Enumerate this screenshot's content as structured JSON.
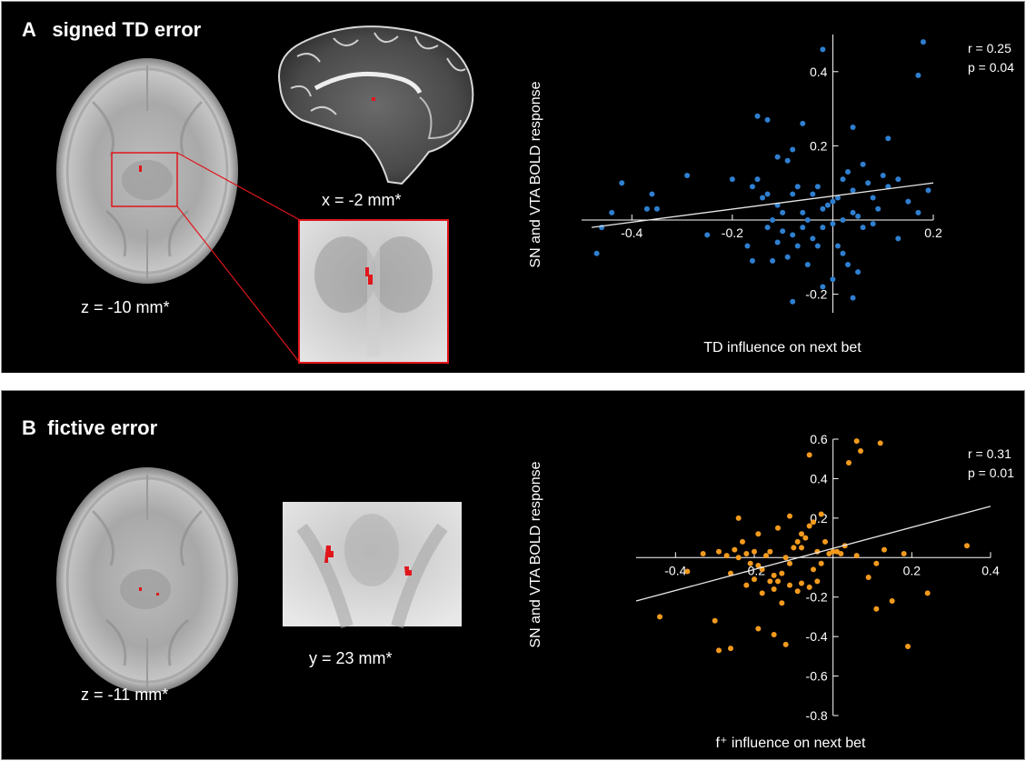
{
  "panels": {
    "a": {
      "letter": "A",
      "title": "signed TD error",
      "axial_caption": "z = -10 mm*",
      "sagittal_caption": "x = -2 mm*"
    },
    "b": {
      "letter": "B",
      "title": "fictive error",
      "axial_caption": "z = -11 mm*",
      "coronal_caption": "y = 23 mm*"
    }
  },
  "colors": {
    "blue": "#2f7fd0",
    "orange": "#f39a1e",
    "activation": "#e0161b",
    "panel_bg": "#000000",
    "text": "#ffffff"
  },
  "chart_data": [
    {
      "type": "scatter",
      "ylabel": "SN and VTA BOLD response",
      "xlabel": "TD influence on next bet",
      "stats": [
        "r = 0.25",
        "p = 0.04"
      ],
      "xlim": [
        -0.5,
        0.2
      ],
      "ylim": [
        -0.25,
        0.5
      ],
      "xticks": [
        -0.4,
        -0.2,
        0.2
      ],
      "yticks": [
        -0.2,
        0.2,
        0.4
      ],
      "color": "#2f7fd0",
      "fit_line": [
        [
          -0.48,
          -0.02
        ],
        [
          0.2,
          0.1
        ]
      ],
      "points": [
        [
          -0.36,
          0.07
        ],
        [
          -0.35,
          0.03
        ],
        [
          -0.29,
          0.12
        ],
        [
          -0.2,
          0.11
        ],
        [
          -0.42,
          0.1
        ],
        [
          -0.44,
          0.02
        ],
        [
          -0.46,
          -0.02
        ],
        [
          -0.47,
          -0.09
        ],
        [
          -0.25,
          -0.04
        ],
        [
          -0.37,
          0.03
        ],
        [
          -0.13,
          0.07
        ],
        [
          -0.11,
          0.04
        ],
        [
          -0.1,
          0.02
        ],
        [
          -0.09,
          0.16
        ],
        [
          -0.08,
          0.07
        ],
        [
          -0.07,
          0.09
        ],
        [
          -0.06,
          0.02
        ],
        [
          -0.05,
          0.0
        ],
        [
          -0.04,
          0.07
        ],
        [
          -0.03,
          0.09
        ],
        [
          -0.02,
          0.03
        ],
        [
          -0.01,
          0.04
        ],
        [
          0.0,
          0.05
        ],
        [
          0.01,
          0.06
        ],
        [
          0.02,
          0.11
        ],
        [
          0.03,
          0.13
        ],
        [
          0.04,
          0.08
        ],
        [
          0.05,
          0.01
        ],
        [
          0.06,
          0.15
        ],
        [
          0.07,
          0.1
        ],
        [
          0.08,
          0.06
        ],
        [
          0.09,
          0.03
        ],
        [
          0.1,
          0.12
        ],
        [
          0.11,
          0.09
        ],
        [
          0.13,
          0.11
        ],
        [
          0.15,
          0.05
        ],
        [
          0.17,
          0.02
        ],
        [
          0.19,
          0.08
        ],
        [
          -0.16,
          0.09
        ],
        [
          -0.15,
          0.11
        ],
        [
          -0.14,
          0.06
        ],
        [
          -0.12,
          0.0
        ],
        [
          -0.13,
          -0.02
        ],
        [
          -0.1,
          -0.03
        ],
        [
          -0.08,
          -0.04
        ],
        [
          -0.06,
          -0.02
        ],
        [
          -0.04,
          -0.05
        ],
        [
          -0.02,
          -0.02
        ],
        [
          0.0,
          -0.01
        ],
        [
          0.02,
          0.0
        ],
        [
          0.04,
          0.02
        ],
        [
          0.06,
          -0.02
        ],
        [
          0.08,
          -0.01
        ],
        [
          -0.11,
          -0.06
        ],
        [
          -0.07,
          -0.07
        ],
        [
          -0.03,
          -0.07
        ],
        [
          0.01,
          -0.07
        ],
        [
          0.02,
          -0.09
        ],
        [
          0.03,
          -0.12
        ],
        [
          0.05,
          -0.14
        ],
        [
          -0.09,
          -0.1
        ],
        [
          -0.12,
          -0.11
        ],
        [
          -0.16,
          -0.11
        ],
        [
          -0.05,
          -0.12
        ],
        [
          0.0,
          -0.16
        ],
        [
          -0.02,
          -0.18
        ],
        [
          0.04,
          -0.21
        ],
        [
          -0.08,
          -0.22
        ],
        [
          -0.17,
          -0.07
        ],
        [
          -0.11,
          0.17
        ],
        [
          -0.08,
          0.19
        ],
        [
          -0.06,
          0.26
        ],
        [
          0.04,
          0.25
        ],
        [
          -0.02,
          0.46
        ],
        [
          0.17,
          0.39
        ],
        [
          0.18,
          0.48
        ],
        [
          0.11,
          0.22
        ],
        [
          -0.13,
          0.27
        ],
        [
          -0.15,
          0.28
        ],
        [
          0.13,
          -0.05
        ]
      ]
    },
    {
      "type": "scatter",
      "ylabel": "SN and VTA BOLD response",
      "xlabel": "f⁺ influence on next bet",
      "stats": [
        "r = 0.31",
        "p = 0.01"
      ],
      "xlim": [
        -0.5,
        0.4
      ],
      "ylim": [
        -0.8,
        0.6
      ],
      "xticks": [
        -0.4,
        -0.2,
        0.2,
        0.4
      ],
      "yticks": [
        -0.8,
        -0.6,
        -0.4,
        -0.2,
        0.2,
        0.4,
        0.6
      ],
      "color": "#f39a1e",
      "fit_line": [
        [
          -0.5,
          -0.22
        ],
        [
          0.4,
          0.26
        ]
      ],
      "points": [
        [
          -0.44,
          -0.3
        ],
        [
          -0.3,
          -0.32
        ],
        [
          -0.29,
          -0.47
        ],
        [
          -0.26,
          -0.46
        ],
        [
          -0.33,
          0.02
        ],
        [
          -0.29,
          0.03
        ],
        [
          -0.27,
          0.01
        ],
        [
          -0.25,
          0.04
        ],
        [
          -0.24,
          0.0
        ],
        [
          -0.22,
          0.02
        ],
        [
          -0.21,
          -0.03
        ],
        [
          -0.2,
          0.03
        ],
        [
          -0.19,
          -0.04
        ],
        [
          -0.18,
          -0.06
        ],
        [
          -0.17,
          0.01
        ],
        [
          -0.16,
          0.03
        ],
        [
          -0.15,
          -0.09
        ],
        [
          -0.14,
          -0.12
        ],
        [
          -0.13,
          -0.08
        ],
        [
          -0.12,
          0.0
        ],
        [
          -0.11,
          -0.03
        ],
        [
          -0.1,
          0.05
        ],
        [
          -0.09,
          0.08
        ],
        [
          -0.08,
          0.12
        ],
        [
          -0.07,
          0.1
        ],
        [
          -0.06,
          0.16
        ],
        [
          -0.05,
          -0.06
        ],
        [
          -0.04,
          0.03
        ],
        [
          -0.03,
          -0.03
        ],
        [
          -0.02,
          0.08
        ],
        [
          -0.01,
          0.02
        ],
        [
          0.0,
          0.03
        ],
        [
          0.01,
          0.03
        ],
        [
          0.02,
          0.02
        ],
        [
          0.03,
          0.06
        ],
        [
          0.06,
          0.01
        ],
        [
          0.09,
          -0.1
        ],
        [
          0.11,
          -0.03
        ],
        [
          0.13,
          0.04
        ],
        [
          0.18,
          0.02
        ],
        [
          -0.22,
          -0.14
        ],
        [
          -0.18,
          -0.18
        ],
        [
          -0.15,
          -0.16
        ],
        [
          -0.13,
          -0.23
        ],
        [
          -0.11,
          -0.14
        ],
        [
          -0.09,
          -0.17
        ],
        [
          -0.08,
          -0.13
        ],
        [
          -0.06,
          -0.15
        ],
        [
          -0.04,
          -0.12
        ],
        [
          -0.16,
          -0.12
        ],
        [
          -0.2,
          -0.11
        ],
        [
          -0.26,
          -0.08
        ],
        [
          -0.23,
          0.08
        ],
        [
          -0.19,
          0.12
        ],
        [
          -0.14,
          0.15
        ],
        [
          -0.11,
          0.21
        ],
        [
          -0.08,
          0.05
        ],
        [
          -0.05,
          0.18
        ],
        [
          -0.03,
          0.22
        ],
        [
          -0.24,
          0.2
        ],
        [
          -0.19,
          -0.36
        ],
        [
          -0.15,
          -0.39
        ],
        [
          -0.12,
          -0.44
        ],
        [
          0.06,
          0.59
        ],
        [
          0.07,
          0.54
        ],
        [
          0.04,
          0.48
        ],
        [
          0.12,
          0.58
        ],
        [
          -0.06,
          0.52
        ],
        [
          0.15,
          -0.22
        ],
        [
          0.11,
          -0.26
        ],
        [
          0.19,
          -0.45
        ],
        [
          0.24,
          -0.18
        ],
        [
          0.34,
          0.06
        ],
        [
          -0.37,
          -0.07
        ]
      ]
    }
  ]
}
